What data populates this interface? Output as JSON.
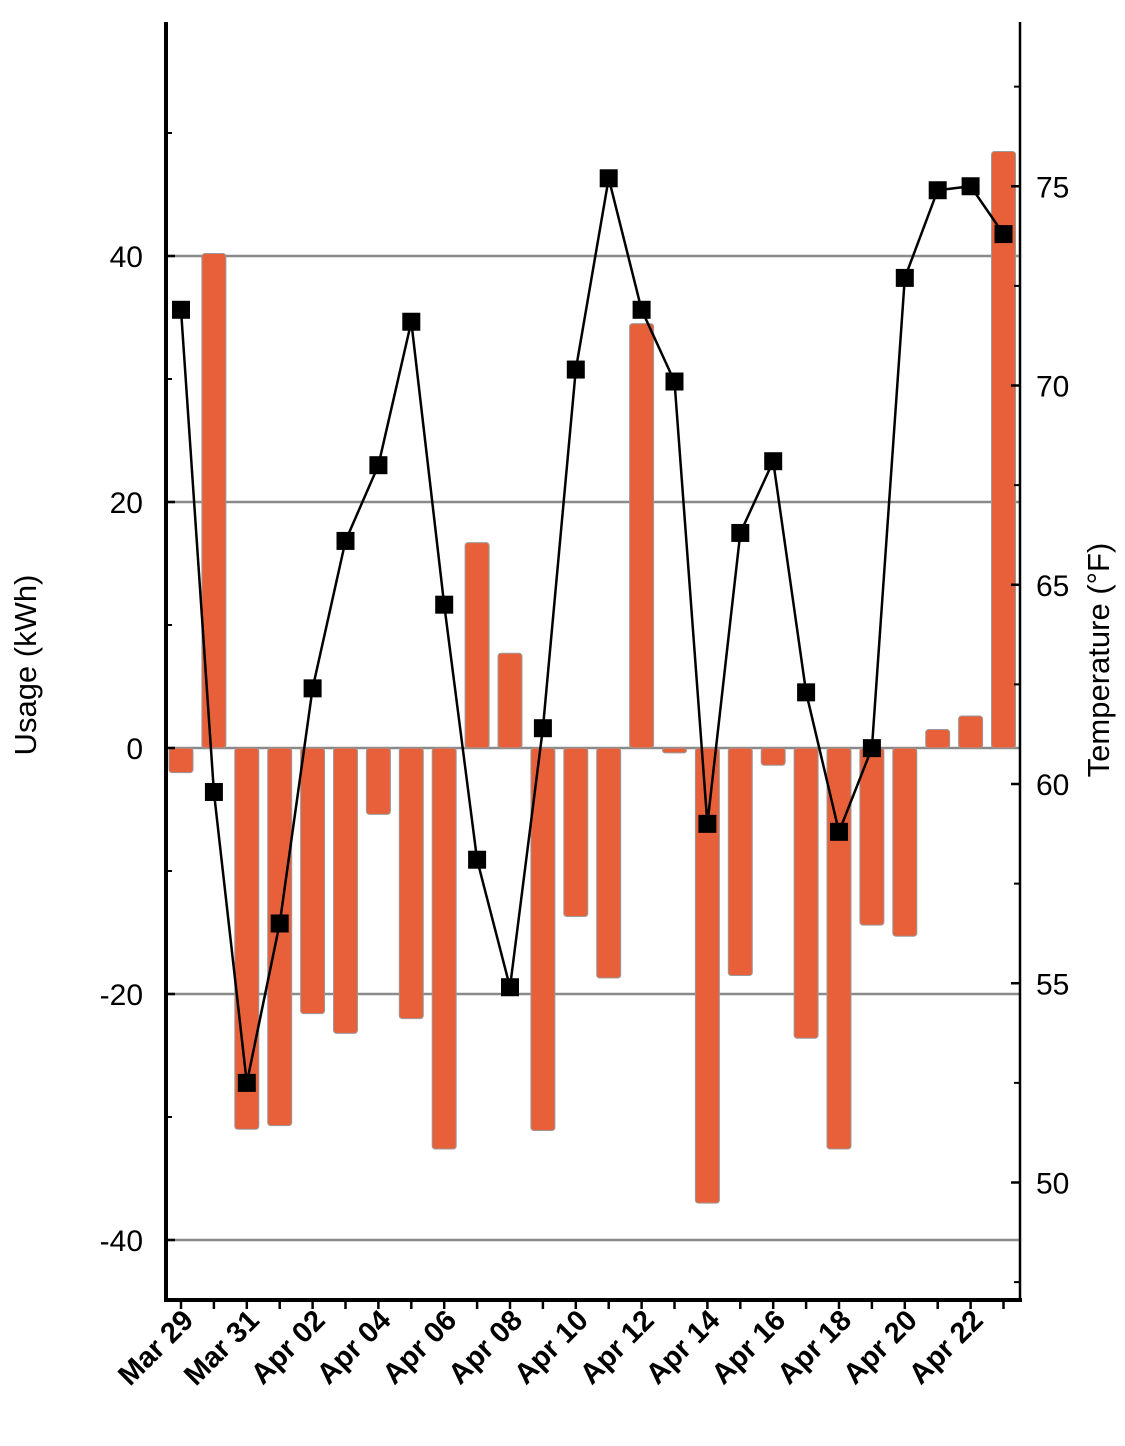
{
  "chart_data": {
    "type": "bar+line",
    "dates": [
      "Mar 29",
      "Mar 30",
      "Mar 31",
      "Apr 01",
      "Apr 02",
      "Apr 03",
      "Apr 04",
      "Apr 05",
      "Apr 06",
      "Apr 07",
      "Apr 08",
      "Apr 09",
      "Apr 10",
      "Apr 11",
      "Apr 12",
      "Apr 13",
      "Apr 14",
      "Apr 15",
      "Apr 16",
      "Apr 17",
      "Apr 18",
      "Apr 19",
      "Apr 20",
      "Apr 21",
      "Apr 22",
      "Apr 23"
    ],
    "x_tick_labels": [
      "Mar 29",
      "Mar 31",
      "Apr 02",
      "Apr 04",
      "Apr 06",
      "Apr 08",
      "Apr 10",
      "Apr 12",
      "Apr 14",
      "Apr 16",
      "Apr 18",
      "Apr 20",
      "Apr 22"
    ],
    "series": [
      {
        "name": "Usage",
        "axis": "left",
        "kind": "bar",
        "color": "#e8603a",
        "values": [
          -2,
          40.2,
          -31,
          -30.7,
          -21.6,
          -23.2,
          -5.4,
          -22,
          -32.6,
          16.7,
          7.7,
          -31.1,
          -13.7,
          -18.7,
          34.5,
          -0.4,
          -37,
          -18.5,
          -1.4,
          -23.6,
          -32.6,
          -14.4,
          -15.3,
          1.5,
          2.6,
          48.5
        ]
      },
      {
        "name": "Temperature",
        "axis": "right",
        "kind": "line",
        "color": "#000000",
        "values": [
          71.9,
          59.8,
          52.5,
          56.5,
          62.4,
          66.1,
          68.0,
          71.6,
          64.5,
          58.1,
          54.9,
          61.4,
          70.4,
          75.2,
          71.9,
          70.1,
          59.0,
          66.3,
          68.1,
          62.3,
          58.8,
          60.9,
          72.7,
          74.9,
          75.0,
          73.8
        ]
      }
    ],
    "y_left": {
      "label": "Usage (kWh)",
      "ticks": [
        "-40",
        "-20",
        "0",
        "20",
        "40"
      ],
      "tick_values": [
        -40,
        -20,
        0,
        20,
        40
      ],
      "range": [
        -45,
        60
      ]
    },
    "y_right": {
      "label": "Temperature (°F)",
      "ticks": [
        "50",
        "55",
        "60",
        "65",
        "70",
        "75"
      ],
      "tick_values": [
        50,
        55,
        60,
        65,
        70,
        75
      ],
      "range": [
        47.4,
        79.5
      ]
    },
    "grid": true
  }
}
